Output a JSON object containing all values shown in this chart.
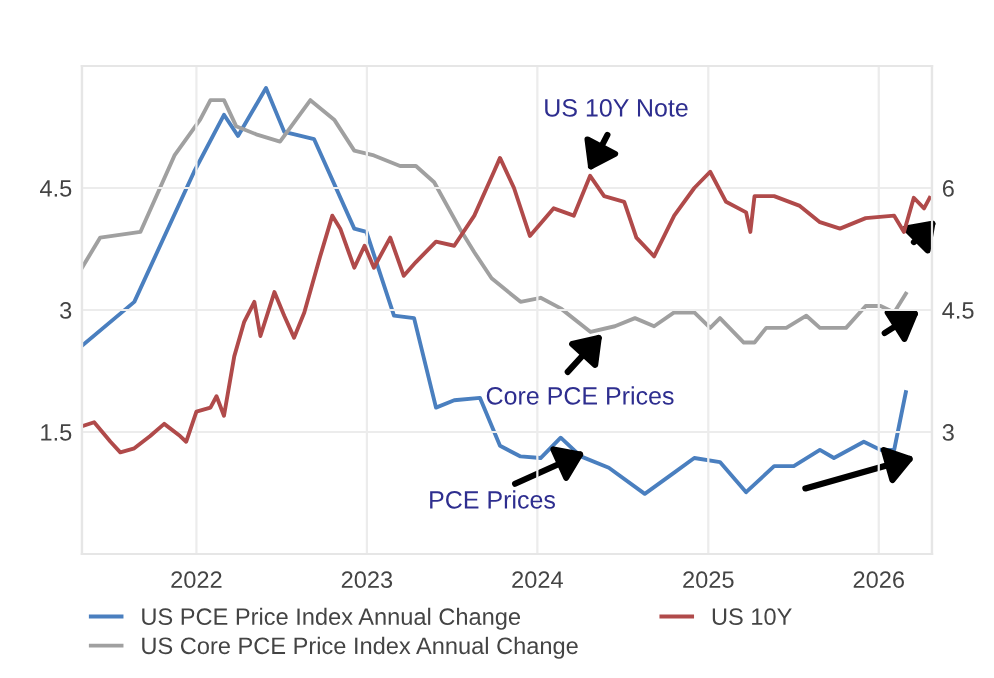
{
  "chart_data": {
    "type": "line",
    "series": [
      {
        "name": "US PCE Price Index Annual Change",
        "color": "#4a7fbf",
        "axis": "y2",
        "x": [
          "2021-05-01",
          "2021-08-21",
          "2021-12-27",
          "2022-03-01",
          "2022-03-31",
          "2022-05-30",
          "2022-07-08",
          "2022-09-10",
          "2022-12-05",
          "2022-12-31",
          "2023-02-28",
          "2023-04-12",
          "2023-05-29",
          "2023-07-07",
          "2023-08-31",
          "2023-10-13",
          "2023-11-26",
          "2024-01-08",
          "2024-02-20",
          "2024-04-03",
          "2024-06-02",
          "2024-08-18",
          "2024-10-20",
          "2024-12-02",
          "2025-01-26",
          "2025-03-23",
          "2025-05-22",
          "2025-07-03",
          "2025-08-28",
          "2025-09-27",
          "2025-11-30",
          "2026-01-05",
          "2026-02-03",
          "2026-02-28"
        ],
        "values": [
          4.06,
          4.6,
          6.2,
          6.9,
          6.64,
          7.23,
          6.69,
          6.6,
          5.5,
          5.46,
          4.43,
          4.4,
          3.3,
          3.39,
          3.42,
          2.83,
          2.7,
          2.68,
          2.93,
          2.7,
          2.56,
          2.24,
          2.5,
          2.68,
          2.63,
          2.26,
          2.58,
          2.58,
          2.78,
          2.68,
          2.88,
          2.78,
          2.78,
          3.49
        ]
      },
      {
        "name": "US Core PCE Price Index Annual Change",
        "color": "#a0a0a0",
        "axis": "y2",
        "x": [
          "2021-05-01",
          "2021-06-09",
          "2021-09-03",
          "2021-11-15",
          "2022-01-09",
          "2022-01-31",
          "2022-03-01",
          "2022-03-27",
          "2022-05-09",
          "2022-06-29",
          "2022-09-02",
          "2022-10-23",
          "2022-12-05",
          "2023-01-16",
          "2023-03-13",
          "2023-04-16",
          "2023-05-25",
          "2023-07-19",
          "2023-08-19",
          "2023-09-25",
          "2023-11-26",
          "2024-01-08",
          "2024-02-20",
          "2024-04-24",
          "2024-06-15",
          "2024-07-28",
          "2024-09-07",
          "2024-10-20",
          "2024-12-02",
          "2025-01-05",
          "2025-01-26",
          "2025-03-18",
          "2025-04-10",
          "2025-05-05",
          "2025-06-17",
          "2025-07-30",
          "2025-08-28",
          "2025-10-23",
          "2025-12-04",
          "2026-01-05",
          "2026-02-03",
          "2026-02-28"
        ],
        "values": [
          5.02,
          5.39,
          5.46,
          6.4,
          6.84,
          7.08,
          7.08,
          6.76,
          6.66,
          6.57,
          7.08,
          6.84,
          6.46,
          6.4,
          6.27,
          6.27,
          6.07,
          5.5,
          5.21,
          4.89,
          4.6,
          4.65,
          4.52,
          4.23,
          4.3,
          4.4,
          4.3,
          4.47,
          4.47,
          4.28,
          4.4,
          4.1,
          4.1,
          4.28,
          4.28,
          4.43,
          4.28,
          4.28,
          4.55,
          4.55,
          4.47,
          4.7
        ]
      },
      {
        "name": "US 10Y",
        "color": "#b04a4a",
        "x": [
          "2021-05-01",
          "2021-05-27",
          "2021-07-01",
          "2021-07-22",
          "2021-08-21",
          "2021-09-24",
          "2021-10-24",
          "2021-11-27",
          "2021-12-10",
          "2022-01-01",
          "2022-01-31",
          "2022-02-13",
          "2022-03-01",
          "2022-03-23",
          "2022-04-13",
          "2022-05-05",
          "2022-05-18",
          "2022-06-17",
          "2022-07-08",
          "2022-07-29",
          "2022-08-20",
          "2022-09-23",
          "2022-10-19",
          "2022-11-05",
          "2022-12-05",
          "2022-12-27",
          "2023-01-16",
          "2023-02-20",
          "2023-03-21",
          "2023-04-16",
          "2023-05-29",
          "2023-07-07",
          "2023-08-19",
          "2023-09-30",
          "2023-10-13",
          "2023-11-12",
          "2023-12-16",
          "2024-02-05",
          "2024-03-19",
          "2024-04-23",
          "2024-05-23",
          "2024-07-05",
          "2024-07-31",
          "2024-09-07",
          "2024-10-20",
          "2024-12-02",
          "2025-01-05",
          "2025-02-08",
          "2025-03-23",
          "2025-04-01",
          "2025-04-10",
          "2025-05-22",
          "2025-07-16",
          "2025-08-28",
          "2025-10-10",
          "2025-12-04",
          "2026-02-03",
          "2026-02-24",
          "2026-03-17",
          "2026-04-08",
          "2026-04-20"
        ],
        "values": [
          1.57,
          1.62,
          1.38,
          1.25,
          1.3,
          1.45,
          1.6,
          1.45,
          1.38,
          1.75,
          1.8,
          1.94,
          1.7,
          2.43,
          2.85,
          3.1,
          2.68,
          3.22,
          2.93,
          2.66,
          2.97,
          3.66,
          4.16,
          4.0,
          3.52,
          3.79,
          3.52,
          3.89,
          3.42,
          3.59,
          3.84,
          3.79,
          4.16,
          4.7,
          4.87,
          4.5,
          3.91,
          4.25,
          4.16,
          4.65,
          4.4,
          4.33,
          3.89,
          3.66,
          4.16,
          4.5,
          4.7,
          4.33,
          4.2,
          3.96,
          4.4,
          4.4,
          4.28,
          4.08,
          4.0,
          4.13,
          4.16,
          3.96,
          4.38,
          4.25,
          4.38
        ]
      }
    ],
    "xlim": [
      "2021-05-01",
      "2026-04-25"
    ],
    "xticks": [
      {
        "value": "2022-01-01",
        "label": "2022"
      },
      {
        "value": "2023-01-01",
        "label": "2023"
      },
      {
        "value": "2024-01-01",
        "label": "2024"
      },
      {
        "value": "2025-01-01",
        "label": "2025"
      },
      {
        "value": "2026-01-01",
        "label": "2026"
      }
    ],
    "ylim": [
      0,
      6
    ],
    "yticks": [
      1.5,
      3,
      4.5
    ],
    "y2lim": [
      1.5,
      7.5
    ],
    "y2ticks": [
      3,
      4.5,
      6
    ],
    "grid": true,
    "legend": "bottom",
    "annotations": [
      "US 10Y Note",
      "Core PCE Prices",
      "PCE Prices"
    ]
  }
}
